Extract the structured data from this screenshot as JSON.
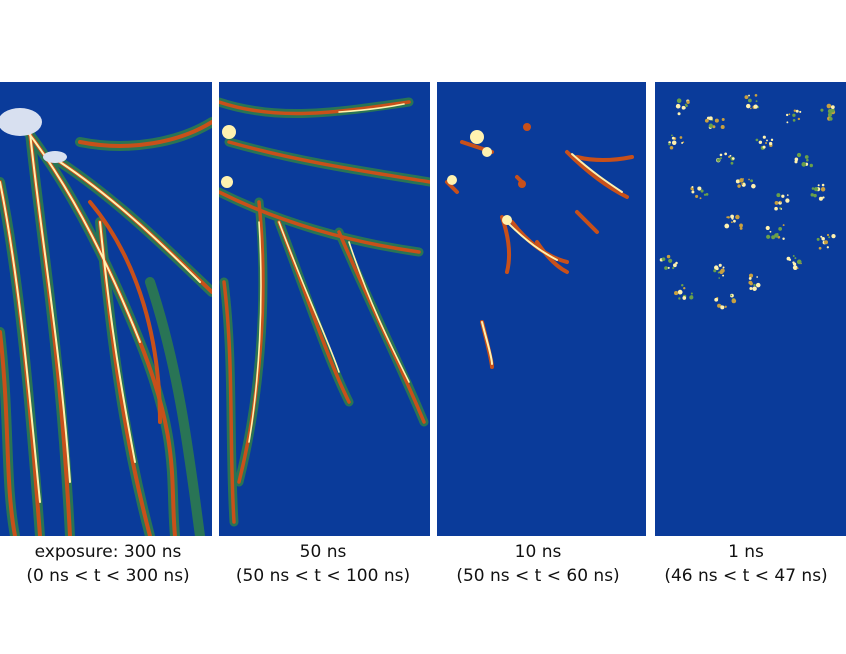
{
  "panels": [
    {
      "label": "exposure: 300 ns",
      "range": "(0 ns < t < 300 ns)"
    },
    {
      "label": "50 ns",
      "range": "(50 ns < t < 100 ns)"
    },
    {
      "label": "10 ns",
      "range": "(50 ns < t < 60 ns)"
    },
    {
      "label": "1 ns",
      "range": "(46 ns < t < 47 ns)"
    }
  ],
  "colors": {
    "background": "#0a3b9a",
    "glow": "#2f7f4a",
    "channel": "#c8501a",
    "hot": "#fff2b0"
  }
}
